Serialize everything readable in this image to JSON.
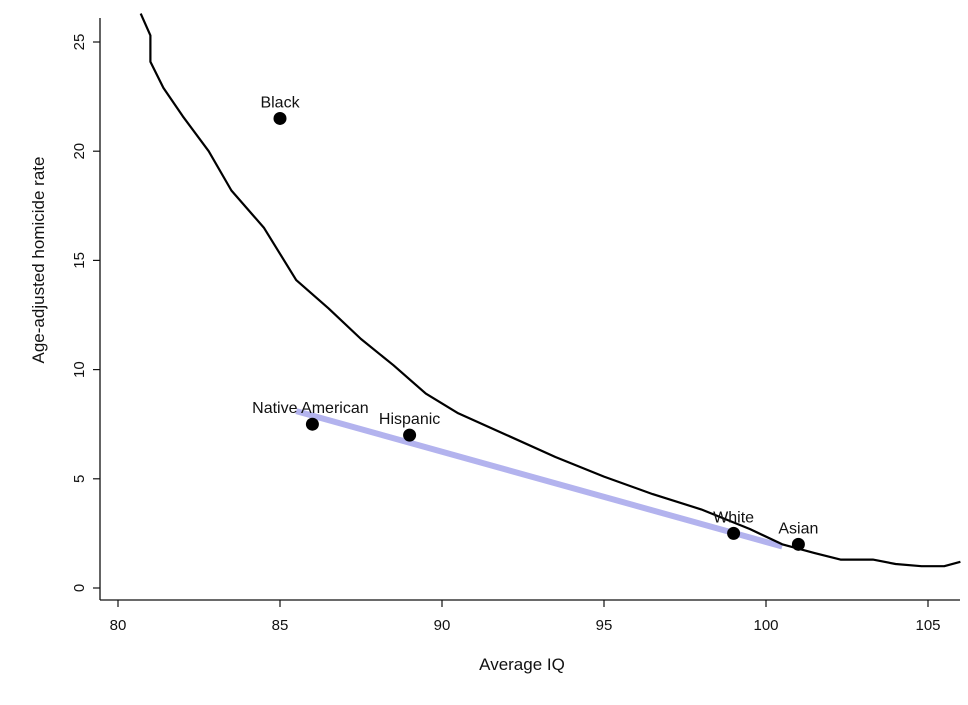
{
  "chart_data": {
    "type": "scatter",
    "title": "",
    "xlabel": "Average IQ",
    "ylabel": "Age-adjusted homicide rate",
    "xlim": [
      79.5,
      106
    ],
    "ylim": [
      -0.5,
      26
    ],
    "x_ticks": [
      80,
      85,
      90,
      95,
      100,
      105
    ],
    "y_ticks": [
      0,
      5,
      10,
      15,
      20,
      25
    ],
    "grid": false,
    "legend": "none",
    "points": [
      {
        "label": "Black",
        "x": 85,
        "y": 21.5
      },
      {
        "label": "Native American",
        "x": 86,
        "y": 7.5
      },
      {
        "label": "Hispanic",
        "x": 89,
        "y": 7.0
      },
      {
        "label": "White",
        "x": 99,
        "y": 2.5
      },
      {
        "label": "Asian",
        "x": 101,
        "y": 2.0
      }
    ],
    "fit_line": {
      "type": "linear",
      "color": "#b3b3ee",
      "points": [
        {
          "x": 85.5,
          "y": 8.1
        },
        {
          "x": 100.5,
          "y": 1.9
        }
      ]
    },
    "curve": {
      "color": "#000000",
      "points": [
        {
          "x": 80.7,
          "y": 26.3
        },
        {
          "x": 81.0,
          "y": 25.3
        },
        {
          "x": 81.0,
          "y": 24.1
        },
        {
          "x": 81.4,
          "y": 22.9
        },
        {
          "x": 82.0,
          "y": 21.6
        },
        {
          "x": 82.8,
          "y": 20.0
        },
        {
          "x": 83.5,
          "y": 18.2
        },
        {
          "x": 84.5,
          "y": 16.5
        },
        {
          "x": 85.0,
          "y": 15.3
        },
        {
          "x": 85.5,
          "y": 14.1
        },
        {
          "x": 86.5,
          "y": 12.8
        },
        {
          "x": 87.5,
          "y": 11.4
        },
        {
          "x": 88.5,
          "y": 10.2
        },
        {
          "x": 89.5,
          "y": 8.9
        },
        {
          "x": 90.5,
          "y": 8.0
        },
        {
          "x": 92.0,
          "y": 7.0
        },
        {
          "x": 93.5,
          "y": 6.0
        },
        {
          "x": 95.0,
          "y": 5.1
        },
        {
          "x": 96.5,
          "y": 4.3
        },
        {
          "x": 98.0,
          "y": 3.6
        },
        {
          "x": 99.5,
          "y": 2.7
        },
        {
          "x": 100.5,
          "y": 2.0
        },
        {
          "x": 101.5,
          "y": 1.6
        },
        {
          "x": 102.3,
          "y": 1.3
        },
        {
          "x": 103.3,
          "y": 1.3
        },
        {
          "x": 104.0,
          "y": 1.1
        },
        {
          "x": 104.8,
          "y": 1.0
        },
        {
          "x": 105.5,
          "y": 1.0
        },
        {
          "x": 106.0,
          "y": 1.2
        }
      ]
    }
  }
}
